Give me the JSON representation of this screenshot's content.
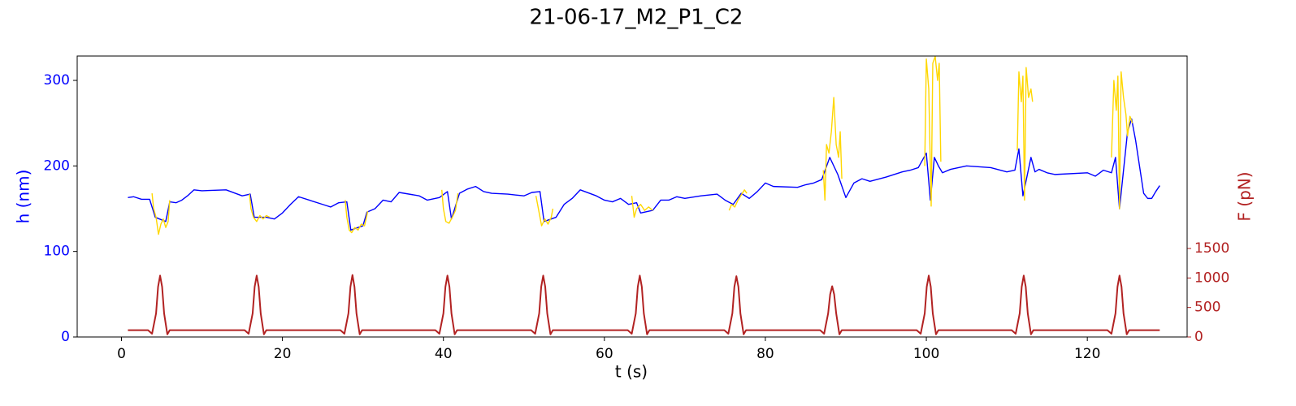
{
  "chart_data": {
    "type": "line",
    "title": "21-06-17_M2_P1_C2",
    "x_label": "t (s)",
    "y_label": "h (nm)",
    "y2_label": "F (pN)",
    "y_label_color": "#0000ff",
    "y2_label_color": "#b22222",
    "xlim": [
      -5.5,
      132.4
    ],
    "xticks": [
      0,
      20,
      40,
      60,
      80,
      100,
      120
    ],
    "ylim": [
      0,
      328.5
    ],
    "yticks": [
      0,
      100,
      200,
      300
    ],
    "y2lim": [
      0,
      4761
    ],
    "y2ticks": [
      0,
      500,
      1000,
      1500
    ],
    "series": [
      {
        "color": "#0000ff",
        "axis": "y",
        "x": [
          0.8,
          1.5,
          2.5,
          3.5,
          4.2,
          5.5,
          6,
          6.8,
          7.5,
          8.2,
          9,
          10,
          13,
          15,
          16,
          16.5,
          18,
          19,
          20,
          21,
          22,
          25,
          26,
          27,
          28,
          28.5,
          30,
          30.5,
          31.5,
          32.5,
          33.5,
          34.5,
          37,
          38,
          39.5,
          40.5,
          41,
          42,
          43,
          44,
          45,
          46,
          48,
          50,
          51,
          52,
          52.5,
          54,
          55,
          56,
          57,
          59,
          60,
          61,
          62,
          63,
          64,
          64.5,
          66,
          67,
          68,
          69,
          70,
          72,
          74,
          75,
          76,
          77,
          78,
          79,
          80,
          81,
          84,
          85,
          86,
          87,
          88,
          89,
          90,
          91,
          92,
          93,
          95,
          97,
          98,
          99,
          100,
          100.5,
          101,
          101.5,
          102,
          103,
          104,
          105,
          108,
          110,
          111,
          111.5,
          112,
          113,
          113.5,
          114,
          115,
          116,
          120,
          121,
          122,
          123,
          123.5,
          124,
          125,
          125.5,
          126,
          127,
          127.5,
          128,
          128.5,
          129
        ],
        "values": [
          163,
          164,
          161,
          161,
          140,
          135,
          158,
          157,
          160,
          165,
          172,
          171,
          172,
          165,
          167,
          140,
          140,
          138,
          145,
          155,
          164,
          155,
          152,
          157,
          158,
          125,
          130,
          146,
          150,
          160,
          158,
          169,
          165,
          160,
          163,
          170,
          138,
          168,
          173,
          176,
          170,
          168,
          167,
          165,
          169,
          170,
          135,
          140,
          155,
          162,
          172,
          165,
          160,
          158,
          162,
          155,
          157,
          145,
          148,
          160,
          160,
          164,
          162,
          165,
          167,
          160,
          155,
          168,
          162,
          170,
          180,
          176,
          175,
          178,
          180,
          184,
          210,
          190,
          163,
          180,
          185,
          182,
          187,
          193,
          195,
          198,
          215,
          160,
          210,
          200,
          192,
          196,
          198,
          200,
          198,
          193,
          195,
          220,
          165,
          210,
          193,
          196,
          192,
          190,
          192,
          188,
          195,
          192,
          210,
          150,
          240,
          255,
          230,
          168,
          162,
          162,
          170,
          177
        ]
      },
      {
        "color": "#ffd700",
        "axis": "y",
        "x": [
          3.8,
          4.0,
          4.3,
          4.6,
          4.9,
          5.2,
          5.5,
          5.8,
          6,
          6.01,
          15.9,
          16.1,
          16.4,
          16.8,
          17.2,
          17.6,
          18.0,
          18.4,
          18.41,
          27.8,
          28.0,
          28.3,
          28.6,
          29,
          29.4,
          29.8,
          30.2,
          30.6,
          30.61,
          39.8,
          40.0,
          40.3,
          40.7,
          41.1,
          41.5,
          41.8,
          41.81,
          51.5,
          51.8,
          52.2,
          52.6,
          53,
          53.4,
          53.6,
          53.61,
          63.4,
          63.7,
          64,
          64.5,
          65,
          65.5,
          66,
          66.01,
          75.5,
          75.8,
          76.2,
          76.6,
          77,
          77.4,
          77.7,
          77.71,
          87.2,
          87.4,
          87.6,
          87.9,
          88.2,
          88.5,
          88.8,
          89.1,
          89.3,
          89.5,
          89.51,
          99.8,
          100,
          100.3,
          100.6,
          100.8,
          101.1,
          101.4,
          101.6,
          101.8,
          101.81,
          111.3,
          111.5,
          111.8,
          112,
          112.2,
          112.4,
          112.7,
          113,
          113.2,
          113.21,
          123,
          123.3,
          123.6,
          123.8,
          124,
          124.2,
          124.5,
          124.8,
          125,
          125.3,
          125.6
        ],
        "values": [
          168,
          150,
          140,
          120,
          132,
          138,
          128,
          135,
          160,
          null,
          167,
          150,
          140,
          135,
          142,
          138,
          142,
          140,
          null,
          160,
          140,
          125,
          122,
          128,
          125,
          132,
          130,
          147,
          null,
          172,
          150,
          135,
          133,
          140,
          148,
          168,
          null,
          165,
          150,
          130,
          138,
          132,
          140,
          150,
          null,
          165,
          140,
          150,
          155,
          148,
          152,
          148,
          null,
          148,
          155,
          152,
          160,
          166,
          172,
          168,
          null,
          195,
          160,
          225,
          215,
          240,
          280,
          225,
          210,
          240,
          185,
          null,
          200,
          325,
          290,
          153,
          320,
          328,
          300,
          320,
          205,
          null,
          218,
          310,
          275,
          305,
          160,
          315,
          280,
          290,
          275,
          null,
          210,
          300,
          265,
          305,
          150,
          310,
          280,
          260,
          235,
          258,
          250
        ]
      },
      {
        "color": "#b22222",
        "axis": "y2",
        "x": [
          0.8,
          3.3,
          3.8,
          4.3,
          4.55,
          4.8,
          5.05,
          5.3,
          5.7,
          6.0,
          15.3,
          15.8,
          16.3,
          16.55,
          16.8,
          17.05,
          17.3,
          17.7,
          18.0,
          27.2,
          27.7,
          28.2,
          28.45,
          28.7,
          28.95,
          29.2,
          29.6,
          29.9,
          39.0,
          39.5,
          40.0,
          40.25,
          40.5,
          40.75,
          41.0,
          41.4,
          41.7,
          50.9,
          51.4,
          51.9,
          52.15,
          52.4,
          52.65,
          52.9,
          53.3,
          53.6,
          62.9,
          63.4,
          63.9,
          64.15,
          64.4,
          64.65,
          64.9,
          65.3,
          65.6,
          74.9,
          75.4,
          75.9,
          76.15,
          76.4,
          76.65,
          76.9,
          77.3,
          77.6,
          86.8,
          87.3,
          87.8,
          88.05,
          88.3,
          88.55,
          88.8,
          89.2,
          89.5,
          98.8,
          99.3,
          99.8,
          100.05,
          100.3,
          100.55,
          100.8,
          101.2,
          101.5,
          110.6,
          111.1,
          111.6,
          111.85,
          112.1,
          112.35,
          112.6,
          113.0,
          113.3,
          122.5,
          123.0,
          123.5,
          123.75,
          124.0,
          124.25,
          124.5,
          124.9,
          125.2,
          129.0
        ],
        "values": [
          115,
          115,
          55,
          400,
          850,
          1040,
          850,
          400,
          45,
          115,
          115,
          55,
          400,
          850,
          1040,
          850,
          400,
          45,
          115,
          115,
          55,
          400,
          850,
          1050,
          850,
          400,
          45,
          115,
          115,
          55,
          400,
          850,
          1040,
          850,
          400,
          45,
          115,
          115,
          55,
          400,
          850,
          1040,
          850,
          400,
          45,
          115,
          115,
          55,
          400,
          850,
          1040,
          850,
          400,
          45,
          115,
          115,
          55,
          400,
          850,
          1030,
          850,
          400,
          45,
          115,
          115,
          55,
          400,
          720,
          860,
          720,
          400,
          45,
          115,
          115,
          55,
          400,
          850,
          1040,
          850,
          400,
          45,
          115,
          115,
          55,
          400,
          850,
          1040,
          850,
          400,
          45,
          115,
          115,
          55,
          400,
          850,
          1040,
          850,
          400,
          45,
          115,
          115
        ]
      }
    ]
  }
}
